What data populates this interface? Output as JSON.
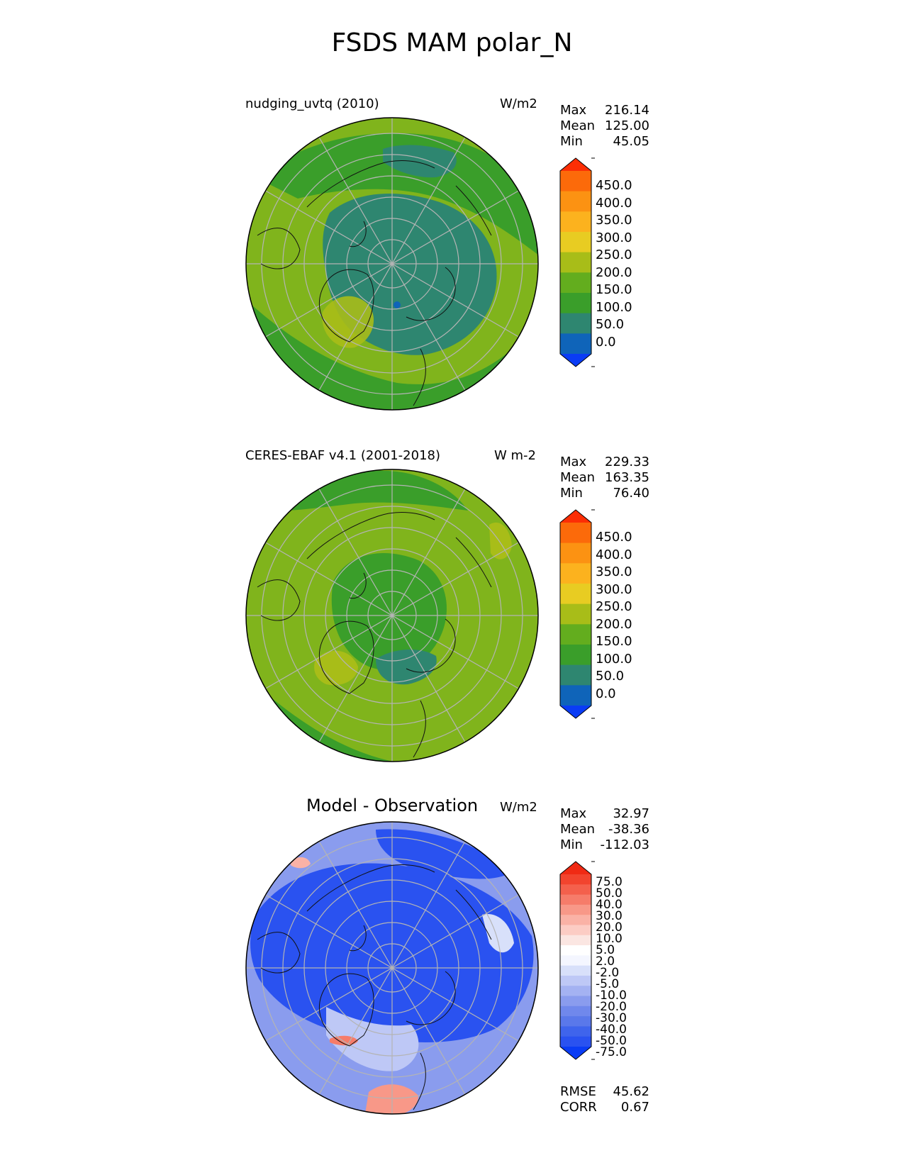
{
  "figure": {
    "title": "FSDS MAM polar_N"
  },
  "panels": [
    {
      "title": "nudging_uvtq (2010)",
      "units": "W/m2",
      "stats": [
        [
          "Max",
          "216.14"
        ],
        [
          "Mean",
          "125.00"
        ],
        [
          "Min",
          "45.05"
        ]
      ],
      "colorbar": {
        "colors": [
          "#0a3cf5",
          "#0f64b9",
          "#2e8670",
          "#3a9e2a",
          "#63ad1e",
          "#a8bd18",
          "#e8cc22",
          "#fcb21e",
          "#fc9212",
          "#fc6a0a",
          "#fc2e05"
        ],
        "ticks": [
          "450.0",
          "400.0",
          "350.0",
          "300.0",
          "250.0",
          "200.0",
          "150.0",
          "100.0",
          "50.0",
          "0.0"
        ]
      }
    },
    {
      "title": "CERES-EBAF v4.1 (2001-2018)",
      "units": "W m-2",
      "stats": [
        [
          "Max",
          "229.33"
        ],
        [
          "Mean",
          "163.35"
        ],
        [
          "Min",
          "76.40"
        ]
      ],
      "colorbar": {
        "colors": [
          "#0a3cf5",
          "#0f64b9",
          "#2e8670",
          "#3a9e2a",
          "#63ad1e",
          "#a8bd18",
          "#e8cc22",
          "#fcb21e",
          "#fc9212",
          "#fc6a0a",
          "#fc2e05"
        ],
        "ticks": [
          "450.0",
          "400.0",
          "350.0",
          "300.0",
          "250.0",
          "200.0",
          "150.0",
          "100.0",
          "50.0",
          "0.0"
        ]
      }
    },
    {
      "title": "Model - Observation",
      "units": "W/m2",
      "stats": [
        [
          "Max",
          "32.97"
        ],
        [
          "Mean",
          "-38.36"
        ],
        [
          "Min",
          "-112.03"
        ]
      ],
      "colorbar": {
        "colors": [
          "#0a3cf5",
          "#2a52f0",
          "#3f64ec",
          "#5a78ea",
          "#7088ec",
          "#8a9cee",
          "#a4b2f2",
          "#bec8f6",
          "#d8e0fa",
          "#f4f6ff",
          "#ffffff",
          "#fbe6e2",
          "#fcccc4",
          "#fab2a6",
          "#f89888",
          "#f67c6a",
          "#f4604c",
          "#f2442e",
          "#f02a14"
        ],
        "ticks": [
          "75.0",
          "50.0",
          "40.0",
          "30.0",
          "20.0",
          "10.0",
          "5.0",
          "2.0",
          "-2.0",
          "-5.0",
          "-10.0",
          "-20.0",
          "-30.0",
          "-40.0",
          "-50.0",
          "-75.0"
        ]
      },
      "scores": [
        [
          "RMSE",
          "45.62"
        ],
        [
          "CORR",
          "0.67"
        ]
      ]
    }
  ]
}
